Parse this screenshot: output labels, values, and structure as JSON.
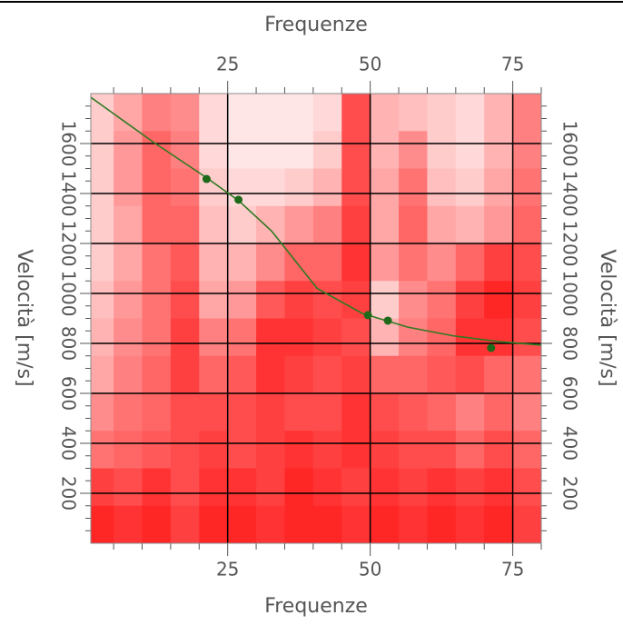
{
  "chart_data": {
    "type": "heatmap",
    "xlabel": "Frequenze",
    "ylabel": "Velocità [m/s]",
    "xlim": [
      1,
      80
    ],
    "ylim": [
      0,
      1800
    ],
    "xticks": [
      25,
      50,
      75
    ],
    "yticks": [
      200,
      400,
      600,
      800,
      1000,
      1200,
      1400,
      1600
    ],
    "xminorticks": [
      5,
      10,
      15,
      20,
      30,
      35,
      40,
      45,
      55,
      60,
      65,
      70,
      80
    ],
    "yminorticks": [
      50,
      100,
      150,
      250,
      300,
      350,
      450,
      500,
      550,
      650,
      700,
      750,
      850,
      900,
      950,
      1050,
      1100,
      1150,
      1250,
      1300,
      1350,
      1450,
      1500,
      1550,
      1650,
      1700,
      1750
    ],
    "grid": true,
    "colors": [
      "#ffffff",
      "#ff0000"
    ],
    "x": [
      2.5,
      7.5,
      12.5,
      17.5,
      22.5,
      27.5,
      32.5,
      37.5,
      42.5,
      47.5,
      52.5,
      57.5,
      62.5,
      67.5,
      72.5,
      77.5
    ],
    "y": [
      1725,
      1575,
      1425,
      1275,
      1125,
      975,
      825,
      675,
      525,
      375,
      225,
      75
    ],
    "z": [
      [
        0.2,
        0.35,
        0.5,
        0.45,
        0.15,
        0.1,
        0.1,
        0.1,
        0.15,
        0.7,
        0.3,
        0.25,
        0.2,
        0.15,
        0.3,
        0.5
      ],
      [
        0.2,
        0.4,
        0.6,
        0.5,
        0.15,
        0.1,
        0.1,
        0.1,
        0.2,
        0.7,
        0.3,
        0.45,
        0.2,
        0.15,
        0.3,
        0.5
      ],
      [
        0.2,
        0.4,
        0.6,
        0.55,
        0.2,
        0.15,
        0.15,
        0.2,
        0.3,
        0.7,
        0.35,
        0.55,
        0.25,
        0.2,
        0.35,
        0.55
      ],
      [
        0.2,
        0.35,
        0.6,
        0.6,
        0.25,
        0.2,
        0.3,
        0.4,
        0.5,
        0.75,
        0.35,
        0.6,
        0.35,
        0.3,
        0.4,
        0.6
      ],
      [
        0.2,
        0.35,
        0.55,
        0.65,
        0.3,
        0.3,
        0.45,
        0.6,
        0.6,
        0.8,
        0.4,
        0.55,
        0.45,
        0.6,
        0.75,
        0.7
      ],
      [
        0.25,
        0.4,
        0.55,
        0.7,
        0.35,
        0.4,
        0.65,
        0.75,
        0.7,
        0.75,
        0.2,
        0.45,
        0.55,
        0.75,
        0.85,
        0.75
      ],
      [
        0.3,
        0.45,
        0.55,
        0.75,
        0.5,
        0.55,
        0.8,
        0.8,
        0.75,
        0.7,
        0.3,
        0.5,
        0.6,
        0.8,
        0.8,
        0.7
      ],
      [
        0.35,
        0.5,
        0.6,
        0.75,
        0.6,
        0.65,
        0.8,
        0.75,
        0.7,
        0.75,
        0.6,
        0.6,
        0.65,
        0.7,
        0.6,
        0.55
      ],
      [
        0.45,
        0.55,
        0.6,
        0.7,
        0.7,
        0.7,
        0.75,
        0.7,
        0.7,
        0.8,
        0.7,
        0.65,
        0.6,
        0.5,
        0.6,
        0.5
      ],
      [
        0.55,
        0.6,
        0.65,
        0.7,
        0.75,
        0.7,
        0.75,
        0.8,
        0.75,
        0.8,
        0.75,
        0.7,
        0.7,
        0.6,
        0.7,
        0.6
      ],
      [
        0.75,
        0.7,
        0.8,
        0.7,
        0.8,
        0.8,
        0.75,
        0.85,
        0.8,
        0.75,
        0.8,
        0.75,
        0.8,
        0.75,
        0.8,
        0.7
      ],
      [
        0.85,
        0.8,
        0.85,
        0.75,
        0.85,
        0.85,
        0.8,
        0.85,
        0.85,
        0.8,
        0.85,
        0.8,
        0.85,
        0.8,
        0.85,
        0.75
      ]
    ],
    "series": [
      {
        "type": "line",
        "color": "#2e7a22",
        "x": [
          1,
          12,
          21.5,
          27,
          32.7,
          40.7,
          48.6,
          56.6,
          64.6,
          72.6,
          80
        ],
        "values": [
          1785,
          1605,
          1460,
          1370,
          1250,
          1020,
          920,
          865,
          830,
          807,
          793
        ]
      },
      {
        "type": "scatter",
        "color": "#1f6a1a",
        "x": [
          21.3,
          26.9,
          49.6,
          53.1,
          71.2
        ],
        "values": [
          1458,
          1375,
          913,
          891,
          782
        ]
      }
    ]
  }
}
